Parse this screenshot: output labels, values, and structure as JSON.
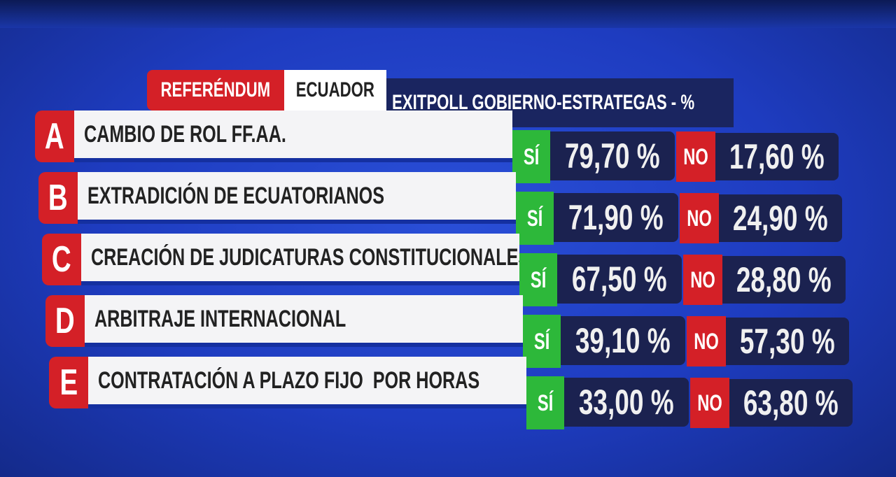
{
  "header": {
    "tag": "REFERÉNDUM",
    "country": "ECUADOR",
    "source": "EXITPOLL GOBIERNO-ESTRATEGAS - %"
  },
  "table": {
    "rows": [
      {
        "letter": "A",
        "question": "CAMBIO DE ROL FF.AA.",
        "yes_label": "SÍ",
        "yes": "79,70 %",
        "no_label": "NO",
        "no": "17,60 %"
      },
      {
        "letter": "B",
        "question": "EXTRADICIÓN DE ECUATORIANOS",
        "yes_label": "SÍ",
        "yes": "71,90 %",
        "no_label": "NO",
        "no": "24,90 %"
      },
      {
        "letter": "C",
        "question": "CREACIÓN DE JUDICATURAS CONSTITUCIONALES",
        "yes_label": "SÍ",
        "yes": "67,50 %",
        "no_label": "NO",
        "no": "28,80 %"
      },
      {
        "letter": "D",
        "question": "ARBITRAJE INTERNACIONAL",
        "yes_label": "SÍ",
        "yes": "39,10 %",
        "no_label": "NO",
        "no": "57,30 %"
      },
      {
        "letter": "E",
        "question": "CONTRATACIÓN A PLAZO FIJO  POR HORAS",
        "yes_label": "SÍ",
        "yes": "33,00 %",
        "no_label": "NO",
        "no": "63,80 %"
      }
    ]
  }
}
